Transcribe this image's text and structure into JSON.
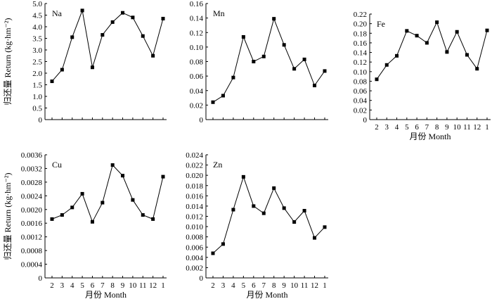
{
  "chart_data": [
    {
      "type": "line",
      "panel_label": "Na",
      "x": [
        "2",
        "3",
        "4",
        "5",
        "6",
        "7",
        "8",
        "9",
        "10",
        "11",
        "12",
        "1"
      ],
      "values": [
        1.65,
        2.15,
        3.55,
        4.7,
        2.25,
        3.65,
        4.2,
        4.6,
        4.4,
        3.6,
        2.75,
        4.35
      ],
      "ylim": [
        0,
        5
      ],
      "yticks": [
        "0",
        "0.5",
        "1.0",
        "1.5",
        "2.0",
        "2.5",
        "3.0",
        "3.5",
        "4.0",
        "4.5",
        "5.0"
      ],
      "ylabel": "归还量 Return (kg·hm⁻²)",
      "xlabel": "",
      "show_xticklabels": false,
      "marker": "square"
    },
    {
      "type": "line",
      "panel_label": "Mn",
      "x": [
        "2",
        "3",
        "4",
        "5",
        "6",
        "7",
        "8",
        "9",
        "10",
        "11",
        "12",
        "1"
      ],
      "values": [
        0.024,
        0.033,
        0.058,
        0.114,
        0.08,
        0.087,
        0.139,
        0.103,
        0.07,
        0.083,
        0.047,
        0.067
      ],
      "ylim": [
        0,
        0.16
      ],
      "yticks": [
        "0",
        "0.02",
        "0.04",
        "0.06",
        "0.08",
        "0.10",
        "0.12",
        "0.14",
        "0.16"
      ],
      "ylabel": "",
      "xlabel": "",
      "show_xticklabels": false,
      "marker": "square"
    },
    {
      "type": "line",
      "panel_label": "Fe",
      "x": [
        "2",
        "3",
        "4",
        "5",
        "6",
        "7",
        "8",
        "9",
        "10",
        "11",
        "12",
        "1"
      ],
      "values": [
        0.084,
        0.114,
        0.133,
        0.185,
        0.175,
        0.16,
        0.203,
        0.141,
        0.183,
        0.135,
        0.106,
        0.186
      ],
      "ylim": [
        0,
        0.22
      ],
      "yticks": [
        "0",
        "0.02",
        "0.04",
        "0.06",
        "0.08",
        "0.10",
        "0.12",
        "0.14",
        "0.16",
        "0.18",
        "0.20",
        "0.22"
      ],
      "ylabel": "",
      "xlabel": "月份 Month",
      "show_xticklabels": true,
      "marker": "square"
    },
    {
      "type": "line",
      "panel_label": "Cu",
      "x": [
        "2",
        "3",
        "4",
        "5",
        "6",
        "7",
        "8",
        "9",
        "10",
        "11",
        "12",
        "1"
      ],
      "values": [
        0.00172,
        0.00184,
        0.00206,
        0.00246,
        0.00164,
        0.0022,
        0.0033,
        0.00299,
        0.00228,
        0.00184,
        0.00172,
        0.00296
      ],
      "ylim": [
        0,
        0.0036
      ],
      "yticks": [
        "0",
        "0.0004",
        "0.0008",
        "0.0012",
        "0.0016",
        "0.0020",
        "0.0024",
        "0.0028",
        "0.0032",
        "0.0036"
      ],
      "ylabel": "归还量 Return (kg·hm⁻²)",
      "xlabel": "月份 Month",
      "show_xticklabels": true,
      "marker": "square"
    },
    {
      "type": "line",
      "panel_label": "Zn",
      "x": [
        "2",
        "3",
        "4",
        "5",
        "6",
        "7",
        "8",
        "9",
        "10",
        "11",
        "12",
        "1"
      ],
      "values": [
        0.0048,
        0.0066,
        0.0133,
        0.0197,
        0.014,
        0.0126,
        0.0175,
        0.0136,
        0.0109,
        0.0131,
        0.0078,
        0.0099
      ],
      "ylim": [
        0,
        0.024
      ],
      "yticks": [
        "0",
        "0.002",
        "0.004",
        "0.006",
        "0.008",
        "0.010",
        "0.012",
        "0.014",
        "0.016",
        "0.018",
        "0.020",
        "0.022",
        "0.024"
      ],
      "ylabel": "",
      "xlabel": "月份 Month",
      "show_xticklabels": true,
      "marker": "square"
    }
  ]
}
